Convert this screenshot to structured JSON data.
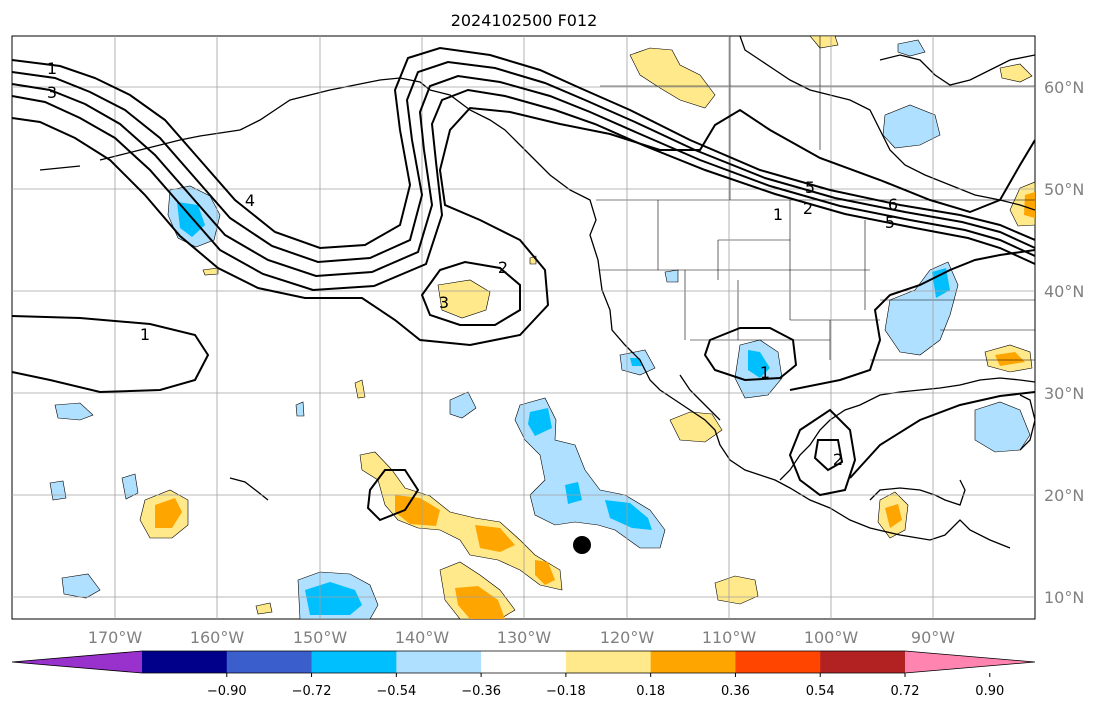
{
  "title": "2024102500 F012",
  "lon_labels": [
    "170°W",
    "160°W",
    "150°W",
    "140°W",
    "130°W",
    "120°W",
    "110°W",
    "100°W",
    "90°W"
  ],
  "lat_labels": [
    "60°N",
    "50°N",
    "40°N",
    "30°N",
    "20°N",
    "10°N"
  ],
  "colorbar": {
    "tick_labels": [
      "−0.90",
      "−0.72",
      "−0.54",
      "−0.36",
      "−0.18",
      "0.18",
      "0.36",
      "0.54",
      "0.72",
      "0.90"
    ],
    "colors": [
      "#9932cc",
      "#00008b",
      "#3a5fcd",
      "#00bfff",
      "#b0e0ff",
      "#ffffff",
      "#ffe98a",
      "#ffa500",
      "#ff4500",
      "#b22222",
      "#ff85b0"
    ]
  },
  "contour_labels": [
    "1",
    "3",
    "4",
    "2",
    "3",
    "1",
    "1",
    "1",
    "2",
    "5",
    "6",
    "5",
    "2"
  ],
  "marker": "storm-center-dot"
}
